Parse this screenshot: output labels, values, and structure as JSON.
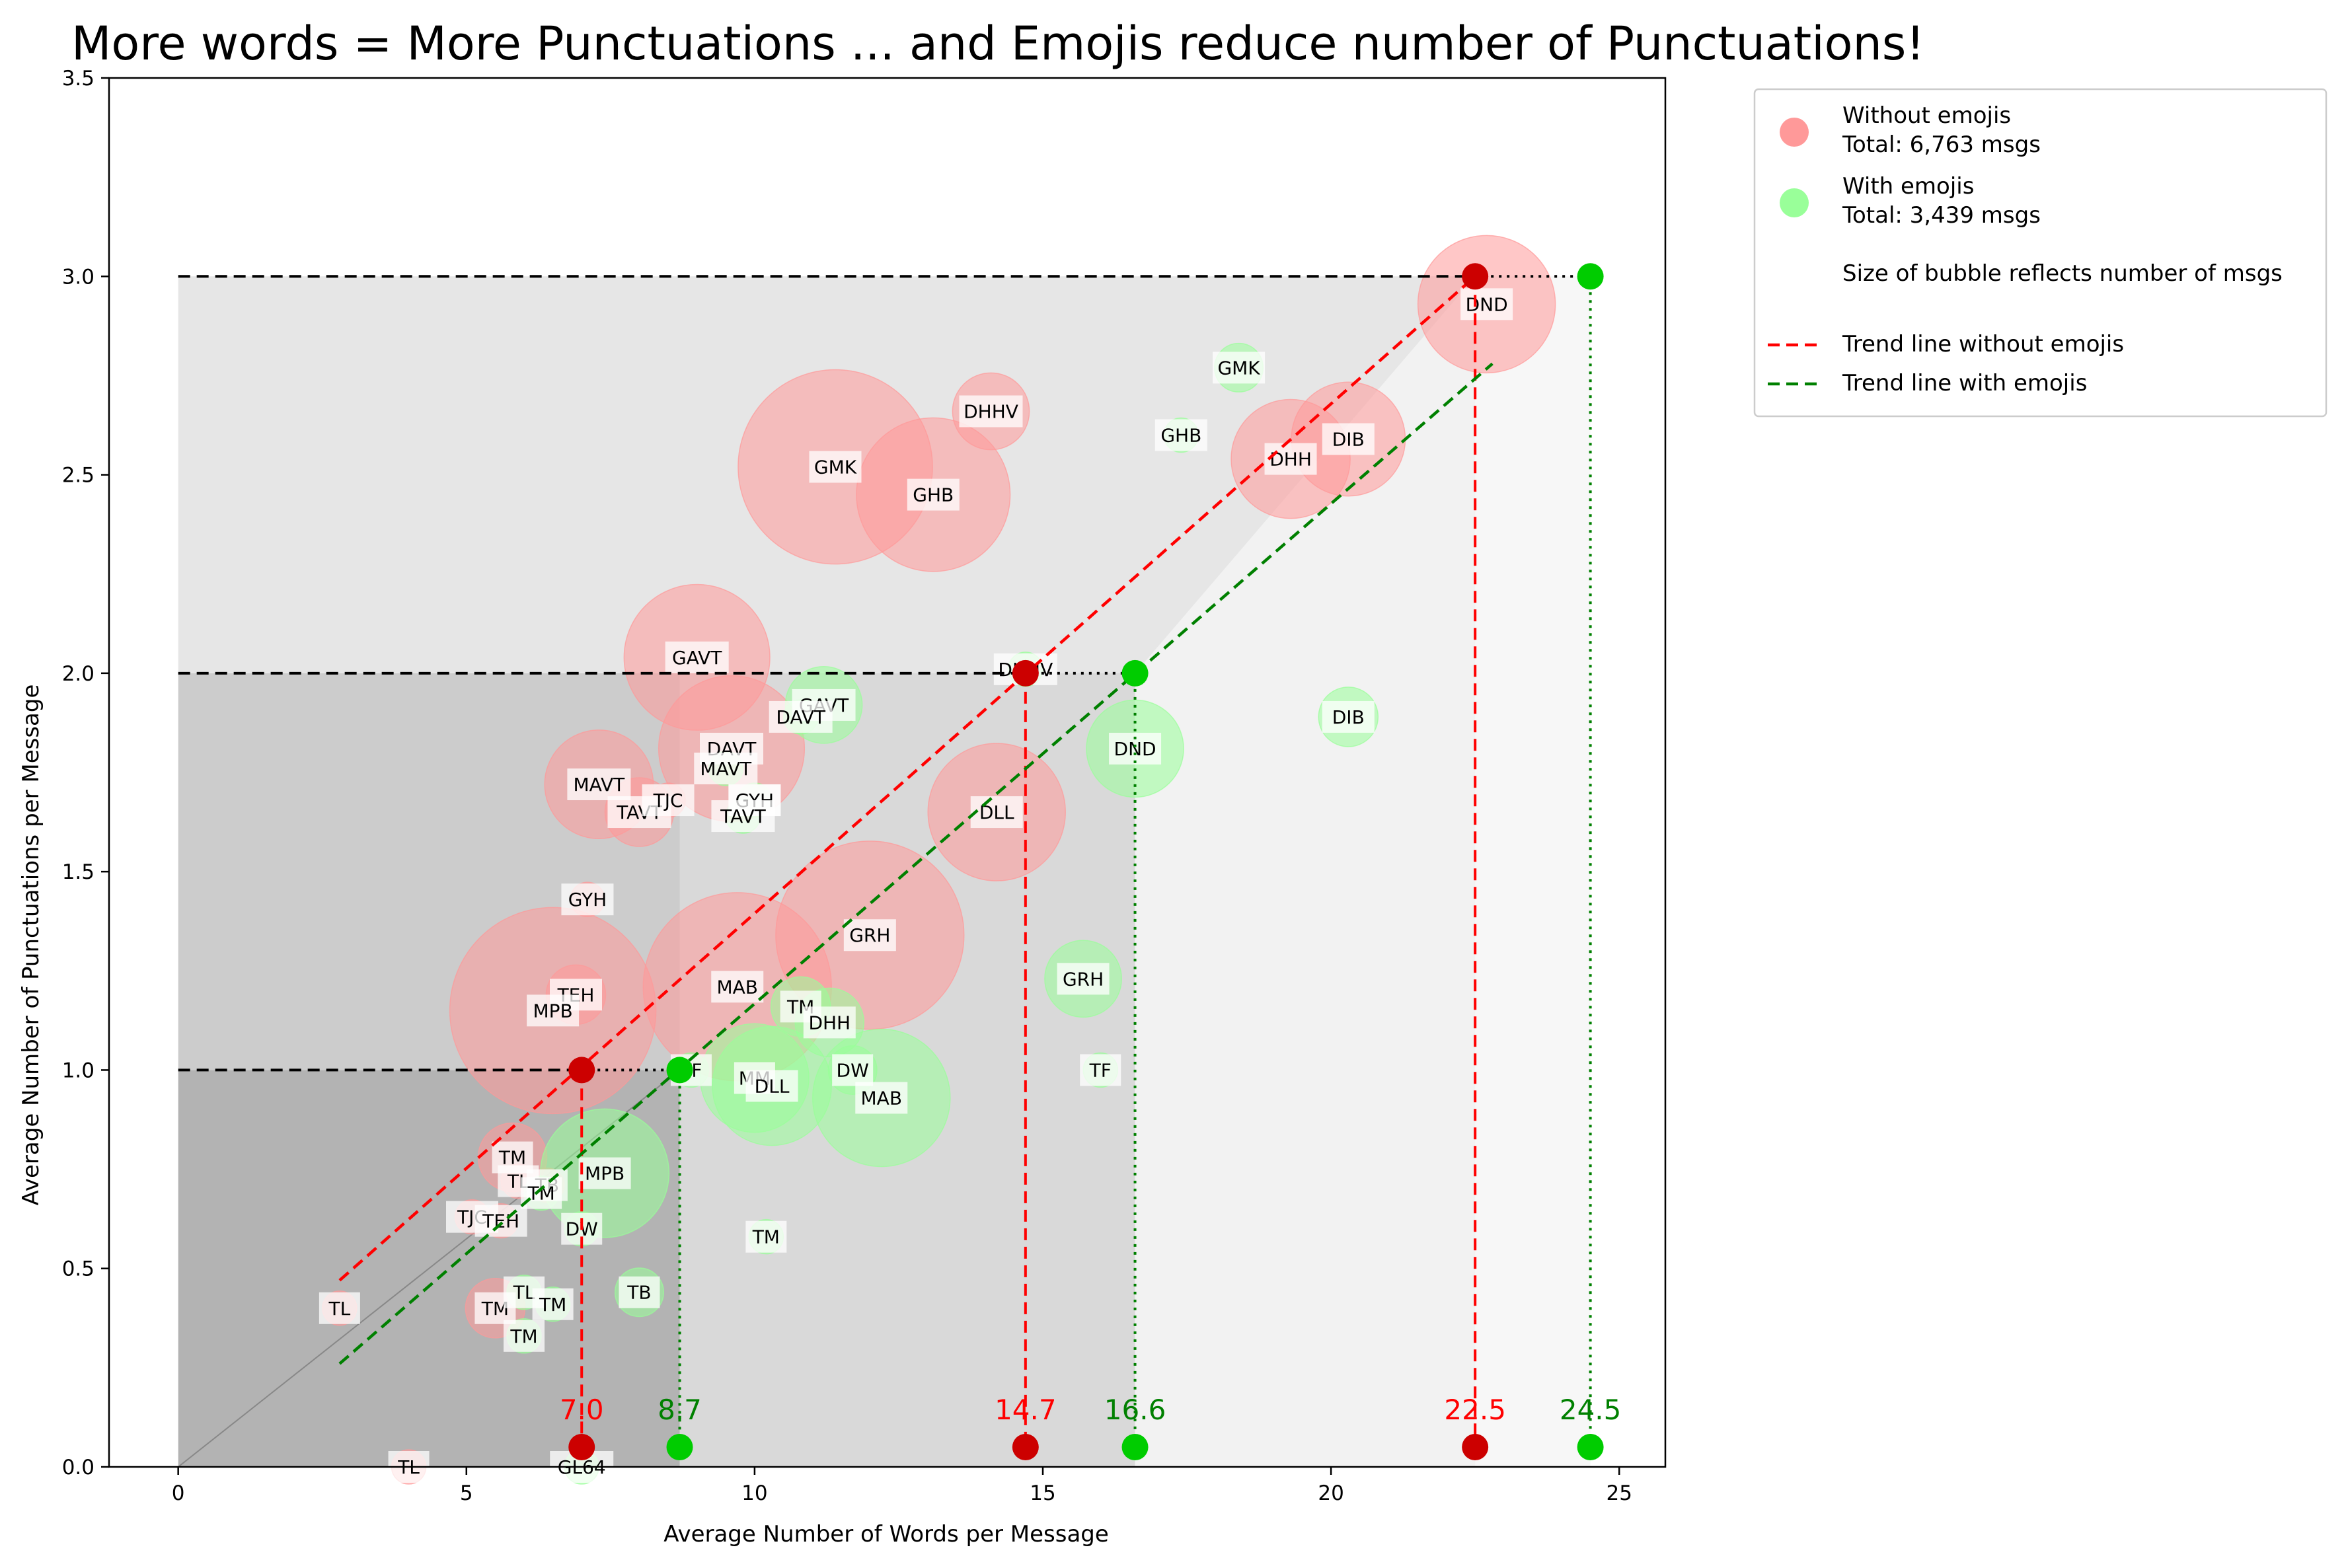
{
  "chart_data": {
    "type": "scatter",
    "title": "More words = More Punctuations ... and Emojis reduce number of Punctuations!",
    "xlabel": "Average Number of Words per Message",
    "ylabel": "Average Number of Punctuations per Message",
    "xlim": [
      -1.2,
      25.8
    ],
    "ylim": [
      0,
      3.5
    ],
    "x_ticks": [
      0,
      5,
      10,
      15,
      20,
      25
    ],
    "x_tick_labels": [
      "0",
      "5",
      "10",
      "15",
      "20",
      "25"
    ],
    "y_ticks": [
      0.0,
      0.5,
      1.0,
      1.5,
      2.0,
      2.5,
      3.0,
      3.5
    ],
    "y_tick_labels": [
      "0.0",
      "0.5",
      "1.0",
      "1.5",
      "2.0",
      "2.5",
      "3.0",
      "3.5"
    ],
    "grid": false,
    "legend_position": "outside-right-top",
    "colors": {
      "without": "#ff9999",
      "with": "#99ff99",
      "without_dot": "#cc0000",
      "with_dot": "#00cc00",
      "trend_without": "#ff0000",
      "trend_with": "#008000",
      "shade_1": "#b3b3b3",
      "shade_2": "#cccccc",
      "shade_3": "#d9d9d9",
      "shade_4": "#e6e6e6",
      "shade_5": "#f2f2f2",
      "shade_6": "#f7f7f7"
    },
    "legend": [
      {
        "kind": "marker",
        "color": "#ff9999",
        "line1": "Without emojis",
        "line2": "Total: 6,763 msgs"
      },
      {
        "kind": "marker",
        "color": "#99ff99",
        "line1": "With emojis",
        "line2": "Total: 3,439 msgs"
      },
      {
        "kind": "none",
        "line1": "Size of bubble reflects number of msgs",
        "line2": ""
      },
      {
        "kind": "dashed",
        "color": "#ff0000",
        "line1": "Trend line without emojis",
        "line2": ""
      },
      {
        "kind": "dashed",
        "color": "#008000",
        "line1": "Trend line with emojis",
        "line2": ""
      }
    ],
    "series": [
      {
        "name": "Without emojis",
        "color": "#ff9999",
        "points": [
          {
            "label": "DND",
            "x": 22.7,
            "y": 2.93,
            "size": 16
          },
          {
            "label": "DHHV",
            "x": 14.1,
            "y": 2.66,
            "size": 5
          },
          {
            "label": "GMK",
            "x": 11.4,
            "y": 2.52,
            "size": 32
          },
          {
            "label": "GHB",
            "x": 13.1,
            "y": 2.45,
            "size": 20
          },
          {
            "label": "DHH",
            "x": 19.3,
            "y": 2.54,
            "size": 12
          },
          {
            "label": "DIB",
            "x": 20.3,
            "y": 2.59,
            "size": 11
          },
          {
            "label": "GAVT",
            "x": 9.0,
            "y": 2.04,
            "size": 18
          },
          {
            "label": "DAVT",
            "x": 9.6,
            "y": 1.81,
            "size": 18
          },
          {
            "label": "MAVT",
            "x": 7.3,
            "y": 1.72,
            "size": 10
          },
          {
            "label": "TAVT",
            "x": 8.0,
            "y": 1.65,
            "size": 4
          },
          {
            "label": "TJC",
            "x": 8.5,
            "y": 1.68,
            "size": 1
          },
          {
            "label": "GYH",
            "x": 10.0,
            "y": 1.68,
            "size": 1
          },
          {
            "label": "DLL",
            "x": 14.2,
            "y": 1.65,
            "size": 16
          },
          {
            "label": "GYH",
            "x": 7.1,
            "y": 1.43,
            "size": 1
          },
          {
            "label": "GRH",
            "x": 12.0,
            "y": 1.34,
            "size": 30
          },
          {
            "label": "MAB",
            "x": 9.7,
            "y": 1.21,
            "size": 30
          },
          {
            "label": "TEH",
            "x": 6.9,
            "y": 1.19,
            "size": 3
          },
          {
            "label": "MPB",
            "x": 6.5,
            "y": 1.15,
            "size": 36
          },
          {
            "label": "TM",
            "x": 5.8,
            "y": 0.78,
            "size": 4
          },
          {
            "label": "TL",
            "x": 5.9,
            "y": 0.72,
            "size": 1
          },
          {
            "label": "TB",
            "x": 6.4,
            "y": 0.71,
            "size": 1
          },
          {
            "label": "TJC",
            "x": 5.1,
            "y": 0.63,
            "size": 1
          },
          {
            "label": "TEH",
            "x": 5.6,
            "y": 0.62,
            "size": 1
          },
          {
            "label": "TM",
            "x": 5.5,
            "y": 0.4,
            "size": 3
          },
          {
            "label": "TL",
            "x": 2.8,
            "y": 0.4,
            "size": 1
          },
          {
            "label": "TL",
            "x": 4.0,
            "y": 0.0,
            "size": 1
          }
        ]
      },
      {
        "name": "With emojis",
        "color": "#99ff99",
        "points": [
          {
            "label": "DND",
            "x": 16.6,
            "y": 1.81,
            "size": 8
          },
          {
            "label": "DHHV",
            "x": 14.7,
            "y": 2.01,
            "size": 1
          },
          {
            "label": "GMK",
            "x": 18.4,
            "y": 2.77,
            "size": 2
          },
          {
            "label": "GHB",
            "x": 17.4,
            "y": 2.6,
            "size": 1
          },
          {
            "label": "DIB",
            "x": 20.3,
            "y": 1.89,
            "size": 3
          },
          {
            "label": "GAVT",
            "x": 11.2,
            "y": 1.92,
            "size": 5
          },
          {
            "label": "DAVT",
            "x": 10.8,
            "y": 1.89,
            "size": 1
          },
          {
            "label": "MAVT",
            "x": 9.5,
            "y": 1.76,
            "size": 1
          },
          {
            "label": "GYH",
            "x": 10.0,
            "y": 1.68,
            "size": 1
          },
          {
            "label": "TAVT",
            "x": 9.8,
            "y": 1.64,
            "size": 1
          },
          {
            "label": "GRH",
            "x": 15.7,
            "y": 1.23,
            "size": 5
          },
          {
            "label": "TM",
            "x": 10.8,
            "y": 1.16,
            "size": 3
          },
          {
            "label": "DHH",
            "x": 11.3,
            "y": 1.12,
            "size": 4
          },
          {
            "label": "TF",
            "x": 8.9,
            "y": 1.0,
            "size": 1
          },
          {
            "label": "TF",
            "x": 16.0,
            "y": 1.0,
            "size": 1
          },
          {
            "label": "MM",
            "x": 10.0,
            "y": 0.98,
            "size": 10
          },
          {
            "label": "DLL",
            "x": 10.3,
            "y": 0.96,
            "size": 12
          },
          {
            "label": "DW",
            "x": 11.7,
            "y": 1.0,
            "size": 2
          },
          {
            "label": "MAB",
            "x": 12.2,
            "y": 0.93,
            "size": 16
          },
          {
            "label": "MPB",
            "x": 7.4,
            "y": 0.74,
            "size": 14
          },
          {
            "label": "TM",
            "x": 6.3,
            "y": 0.69,
            "size": 1
          },
          {
            "label": "DW",
            "x": 7.0,
            "y": 0.6,
            "size": 1
          },
          {
            "label": "TM",
            "x": 10.2,
            "y": 0.58,
            "size": 1
          },
          {
            "label": "TB",
            "x": 8.0,
            "y": 0.44,
            "size": 2
          },
          {
            "label": "TL",
            "x": 6.0,
            "y": 0.44,
            "size": 1
          },
          {
            "label": "TM",
            "x": 6.5,
            "y": 0.41,
            "size": 1
          },
          {
            "label": "TM",
            "x": 6.0,
            "y": 0.33,
            "size": 1
          },
          {
            "label": "GL64",
            "x": 7.0,
            "y": 0.0,
            "size": 1
          }
        ]
      }
    ],
    "trend_lines": [
      {
        "name": "Trend line without emojis",
        "color": "#ff0000",
        "x": [
          2.8,
          22.5
        ],
        "y": [
          0.47,
          3.0
        ]
      },
      {
        "name": "Trend line with emojis",
        "color": "#008000",
        "x": [
          2.8,
          22.8
        ],
        "y": [
          0.26,
          2.78
        ]
      }
    ],
    "reference_lines": [
      {
        "y": 1.0,
        "x_without": 7.0,
        "x_with": 8.7
      },
      {
        "y": 2.0,
        "x_without": 14.7,
        "x_with": 16.6
      },
      {
        "y": 3.0,
        "x_without": 22.5,
        "x_with": 24.5
      }
    ],
    "value_labels": [
      {
        "x": 7.0,
        "text": "7.0",
        "color": "#ff0000"
      },
      {
        "x": 8.7,
        "text": "8.7",
        "color": "#008000"
      },
      {
        "x": 14.7,
        "text": "14.7",
        "color": "#ff0000"
      },
      {
        "x": 16.6,
        "text": "16.6",
        "color": "#008000"
      },
      {
        "x": 22.5,
        "text": "22.5",
        "color": "#ff0000"
      },
      {
        "x": 24.5,
        "text": "24.5",
        "color": "#008000"
      }
    ]
  }
}
